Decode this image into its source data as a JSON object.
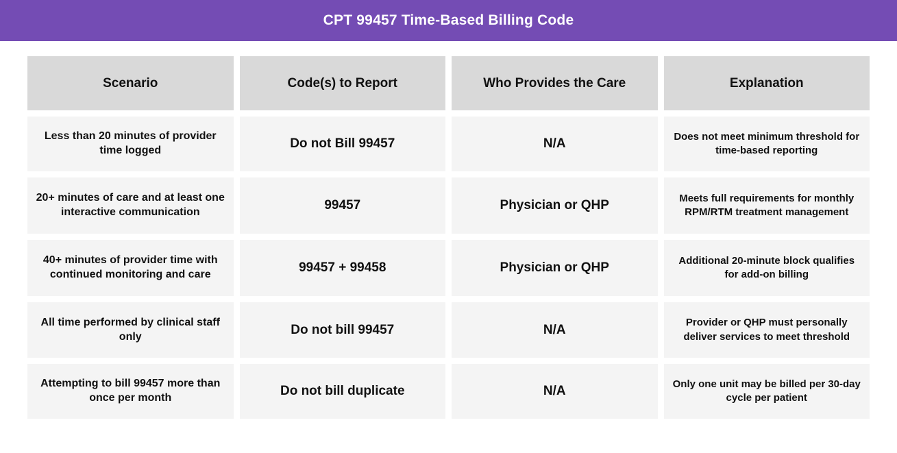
{
  "title": "CPT 99457 Time-Based Billing Code",
  "colors": {
    "title_bar_bg": "#744CB4",
    "title_text": "#FFFFFF",
    "header_cell_bg": "#D9D9D9",
    "body_cell_bg": "#F4F4F4",
    "cell_text": "#111111",
    "page_bg": "#FFFFFF"
  },
  "table": {
    "columns": [
      "Scenario",
      "Code(s) to Report",
      "Who Provides the Care",
      "Explanation"
    ],
    "rows": [
      {
        "scenario": "Less than 20 minutes of provider time logged",
        "code": "Do not Bill 99457",
        "who": "N/A",
        "explanation": "Does not meet minimum threshold for time-based reporting"
      },
      {
        "scenario": "20+ minutes of care and at least one interactive communication",
        "code": "99457",
        "who": "Physician or QHP",
        "explanation": "Meets full requirements for monthly RPM/RTM treatment management"
      },
      {
        "scenario": "40+ minutes of provider time with continued monitoring and care",
        "code": "99457 + 99458",
        "who": "Physician or QHP",
        "explanation": "Additional 20-minute block qualifies for add-on billing"
      },
      {
        "scenario": "All time performed by clinical staff only",
        "code": "Do not bill 99457",
        "who": "N/A",
        "explanation": "Provider or QHP must personally deliver services to meet threshold"
      },
      {
        "scenario": "Attempting to bill 99457 more than once per month",
        "code": "Do not bill duplicate",
        "who": "N/A",
        "explanation": "Only one unit may be billed per 30-day cycle per patient"
      }
    ]
  }
}
